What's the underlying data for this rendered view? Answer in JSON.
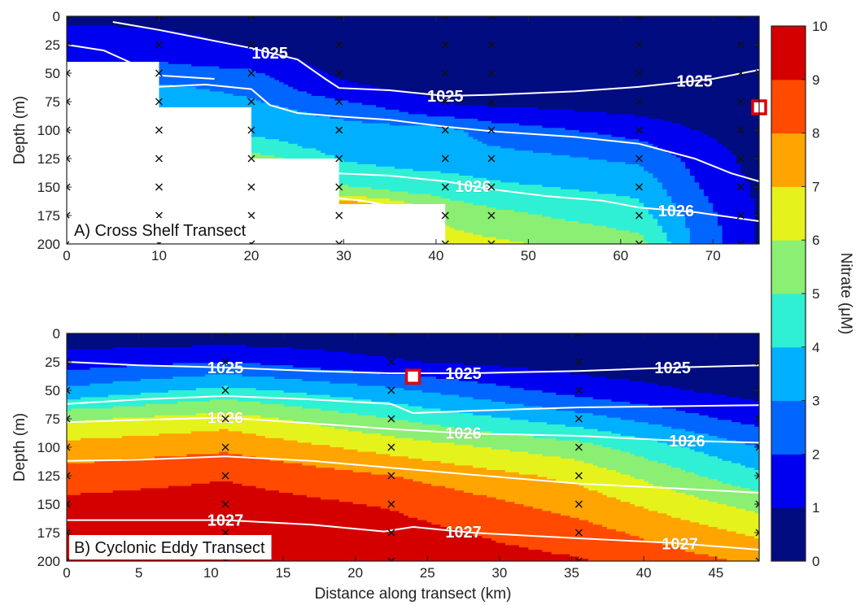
{
  "chart_data": [
    {
      "type": "heatmap",
      "panel_label": "A) Cross Shelf Transect",
      "ylabel": "Depth (m)",
      "xlabel": "",
      "xlim": [
        0,
        75
      ],
      "ylim": [
        0,
        200
      ],
      "y_reversed": true,
      "xticks": [
        0,
        10,
        20,
        30,
        40,
        50,
        60,
        70
      ],
      "yticks": [
        0,
        25,
        50,
        75,
        100,
        125,
        150,
        175,
        200
      ],
      "color_levels": [
        {
          "max": 1,
          "color": "#000c80"
        },
        {
          "max": 2,
          "color": "#0000f0"
        },
        {
          "max": 3,
          "color": "#0066ff"
        },
        {
          "max": 4,
          "color": "#00b0ff"
        },
        {
          "max": 5,
          "color": "#2ff0d4"
        },
        {
          "max": 6,
          "color": "#8aef73"
        },
        {
          "max": 7,
          "color": "#e6f21c"
        },
        {
          "max": 8,
          "color": "#ffa400"
        },
        {
          "max": 9,
          "color": "#ff4a00"
        },
        {
          "max": 10,
          "color": "#d40000"
        }
      ],
      "bottom_mask": [
        [
          0,
          40
        ],
        [
          10,
          40
        ],
        [
          10,
          80
        ],
        [
          20,
          80
        ],
        [
          20,
          125
        ],
        [
          29.5,
          125
        ],
        [
          29.5,
          165
        ],
        [
          41,
          165
        ],
        [
          41,
          200
        ],
        [
          75,
          200
        ]
      ],
      "nitrate_profiles": [
        {
          "x": 0,
          "depths": [
            0,
            10,
            20,
            30,
            40
          ],
          "values": [
            0.3,
            1.3,
            1.8,
            1.9,
            1.9
          ]
        },
        {
          "x": 10,
          "depths": [
            0,
            10,
            20,
            35,
            50,
            65,
            80
          ],
          "values": [
            0.2,
            0.9,
            1.5,
            1.8,
            2.4,
            3.3,
            3.6
          ]
        },
        {
          "x": 20,
          "depths": [
            0,
            15,
            30,
            45,
            60,
            80,
            100,
            115,
            125
          ],
          "values": [
            0.2,
            0.5,
            1.1,
            1.9,
            2.6,
            3.3,
            3.8,
            4.4,
            5.6
          ]
        },
        {
          "x": 29.5,
          "depths": [
            0,
            25,
            50,
            65,
            80,
            100,
            120,
            140,
            155,
            165
          ],
          "values": [
            0.2,
            0.3,
            0.8,
            1.3,
            2.5,
            3.5,
            3.8,
            4.4,
            5.5,
            7.8
          ]
        },
        {
          "x": 41,
          "depths": [
            0,
            25,
            50,
            75,
            85,
            100,
            125,
            150,
            175,
            200
          ],
          "values": [
            0.1,
            0.2,
            0.4,
            0.9,
            1.6,
            3.3,
            3.5,
            4.5,
            5.7,
            6.5
          ]
        },
        {
          "x": 46,
          "depths": [
            0,
            25,
            50,
            75,
            100,
            125,
            150,
            175,
            200
          ],
          "values": [
            0.1,
            0.1,
            0.3,
            0.7,
            2.5,
            3.4,
            4.2,
            5.3,
            6.2
          ]
        },
        {
          "x": 62,
          "depths": [
            0,
            25,
            50,
            75,
            100,
            125,
            150,
            175,
            200
          ],
          "values": [
            0.1,
            0.1,
            0.2,
            0.4,
            1.6,
            2.8,
            3.7,
            4.4,
            5.4
          ]
        },
        {
          "x": 68,
          "depths": [
            0,
            25,
            50,
            75,
            100,
            125,
            150,
            175,
            200
          ],
          "values": [
            0.1,
            0.1,
            0.2,
            0.3,
            1.0,
            1.7,
            2.1,
            2.6,
            2.9
          ]
        },
        {
          "x": 75,
          "depths": [
            0,
            25,
            50,
            75,
            100,
            125,
            150,
            175,
            200
          ],
          "values": [
            0.1,
            0.1,
            0.1,
            0.2,
            0.4,
            0.6,
            0.8,
            0.9,
            0.9
          ]
        }
      ],
      "isopycnals": [
        {
          "label": "1025",
          "x": [
            5,
            10,
            15,
            20,
            25,
            28,
            29.5,
            35,
            41,
            46,
            55,
            62,
            70,
            75
          ],
          "y": [
            5,
            12,
            20,
            28,
            38,
            55,
            63,
            65,
            70,
            69,
            66,
            62,
            55,
            47
          ],
          "label_at": [
            22,
            41,
            68
          ]
        },
        {
          "label": "",
          "x": [
            0,
            4,
            10,
            16
          ],
          "y": [
            25,
            30,
            52,
            55
          ],
          "label_at": []
        },
        {
          "label": "",
          "x": [
            10,
            15,
            20,
            22,
            25,
            29.5,
            35,
            41,
            46,
            55,
            62,
            68,
            72,
            75
          ],
          "y": [
            62,
            60,
            64,
            78,
            85,
            88,
            91,
            97,
            101,
            106,
            112,
            125,
            138,
            145
          ],
          "label_at": []
        },
        {
          "label": "1026",
          "x": [
            29.5,
            35,
            41,
            46,
            52,
            58,
            62,
            68,
            75
          ],
          "y": [
            138,
            140,
            145,
            152,
            158,
            162,
            168,
            172,
            180
          ],
          "label_at": [
            44,
            66
          ]
        },
        {
          "label": "",
          "x": [
            29.5,
            32,
            36
          ],
          "y": [
            160,
            162,
            168
          ],
          "label_at": []
        }
      ],
      "station_x": [
        0,
        10,
        20,
        29.5,
        41,
        46,
        62,
        73,
        75
      ],
      "marker": {
        "x": 75,
        "y": 80
      }
    },
    {
      "type": "heatmap",
      "panel_label": "B) Cyclonic Eddy Transect",
      "ylabel": "Depth (m)",
      "xlabel": "Distance along transect (km)",
      "xlim": [
        0,
        48
      ],
      "ylim": [
        0,
        200
      ],
      "y_reversed": true,
      "xticks": [
        0,
        5,
        10,
        15,
        20,
        25,
        30,
        35,
        40,
        45
      ],
      "yticks": [
        0,
        25,
        50,
        75,
        100,
        125,
        150,
        175,
        200
      ],
      "nitrate_profiles": [
        {
          "x": 0,
          "depths": [
            0,
            25,
            50,
            75,
            100,
            125,
            150,
            175,
            200
          ],
          "values": [
            0.3,
            1.5,
            3.2,
            5.8,
            7.4,
            8.4,
            9.3,
            9.7,
            9.9
          ]
        },
        {
          "x": 11,
          "depths": [
            0,
            25,
            50,
            75,
            100,
            125,
            150,
            175,
            200
          ],
          "values": [
            0.3,
            2.0,
            4.3,
            6.5,
            7.8,
            8.9,
            9.5,
            9.8,
            9.9
          ]
        },
        {
          "x": 22.5,
          "depths": [
            0,
            25,
            50,
            75,
            100,
            125,
            150,
            175,
            200
          ],
          "values": [
            0.3,
            1.1,
            3.2,
            5.0,
            6.6,
            8.0,
            8.9,
            9.4,
            9.7
          ]
        },
        {
          "x": 35.5,
          "depths": [
            0,
            25,
            50,
            75,
            100,
            125,
            150,
            175,
            200
          ],
          "values": [
            0.2,
            0.5,
            1.6,
            3.4,
            5.4,
            6.7,
            7.6,
            8.4,
            9.1
          ]
        },
        {
          "x": 48,
          "depths": [
            0,
            25,
            50,
            75,
            100,
            125,
            150,
            175,
            200
          ],
          "values": [
            0.1,
            0.2,
            0.6,
            1.6,
            3.0,
            4.2,
            5.6,
            6.8,
            7.8
          ]
        }
      ],
      "isopycnals": [
        {
          "label": "1025",
          "x": [
            0,
            5,
            11,
            17,
            22.5,
            28,
            35.5,
            42,
            48
          ],
          "y": [
            25,
            28,
            30,
            33,
            35,
            35,
            33,
            30,
            28
          ],
          "label_at": [
            11,
            27.5,
            42
          ]
        },
        {
          "label": "",
          "x": [
            0,
            5,
            11,
            17,
            22.5,
            24,
            28,
            35.5,
            42,
            48
          ],
          "y": [
            62,
            58,
            55,
            58,
            62,
            70,
            68,
            65,
            64,
            63
          ],
          "label_at": []
        },
        {
          "label": "1026",
          "x": [
            0,
            5,
            11,
            17,
            22.5,
            28,
            35.5,
            42,
            48
          ],
          "y": [
            78,
            76,
            74,
            79,
            84,
            88,
            90,
            94,
            96
          ],
          "label_at": [
            11,
            27.5,
            43
          ]
        },
        {
          "label": "",
          "x": [
            0,
            5,
            11,
            17,
            22.5,
            28,
            35.5,
            42,
            48
          ],
          "y": [
            112,
            111,
            108,
            112,
            118,
            124,
            132,
            136,
            140
          ],
          "label_at": []
        },
        {
          "label": "1027",
          "x": [
            0,
            5,
            11,
            17,
            22,
            24,
            28,
            35.5,
            42,
            48
          ],
          "y": [
            164,
            164,
            164,
            168,
            174,
            170,
            175,
            180,
            184,
            190
          ],
          "label_at": [
            11,
            27.5,
            42.5
          ]
        }
      ],
      "station_x": [
        0,
        11,
        22.5,
        35.5,
        48
      ],
      "marker": {
        "x": 24,
        "y": 38
      }
    }
  ],
  "colorbar": {
    "label": "Nitrate (μM)",
    "min": 0,
    "max": 10,
    "ticks": [
      "0",
      "1",
      "2",
      "3",
      "4",
      "5",
      "6",
      "7",
      "8",
      "9",
      "10"
    ]
  }
}
